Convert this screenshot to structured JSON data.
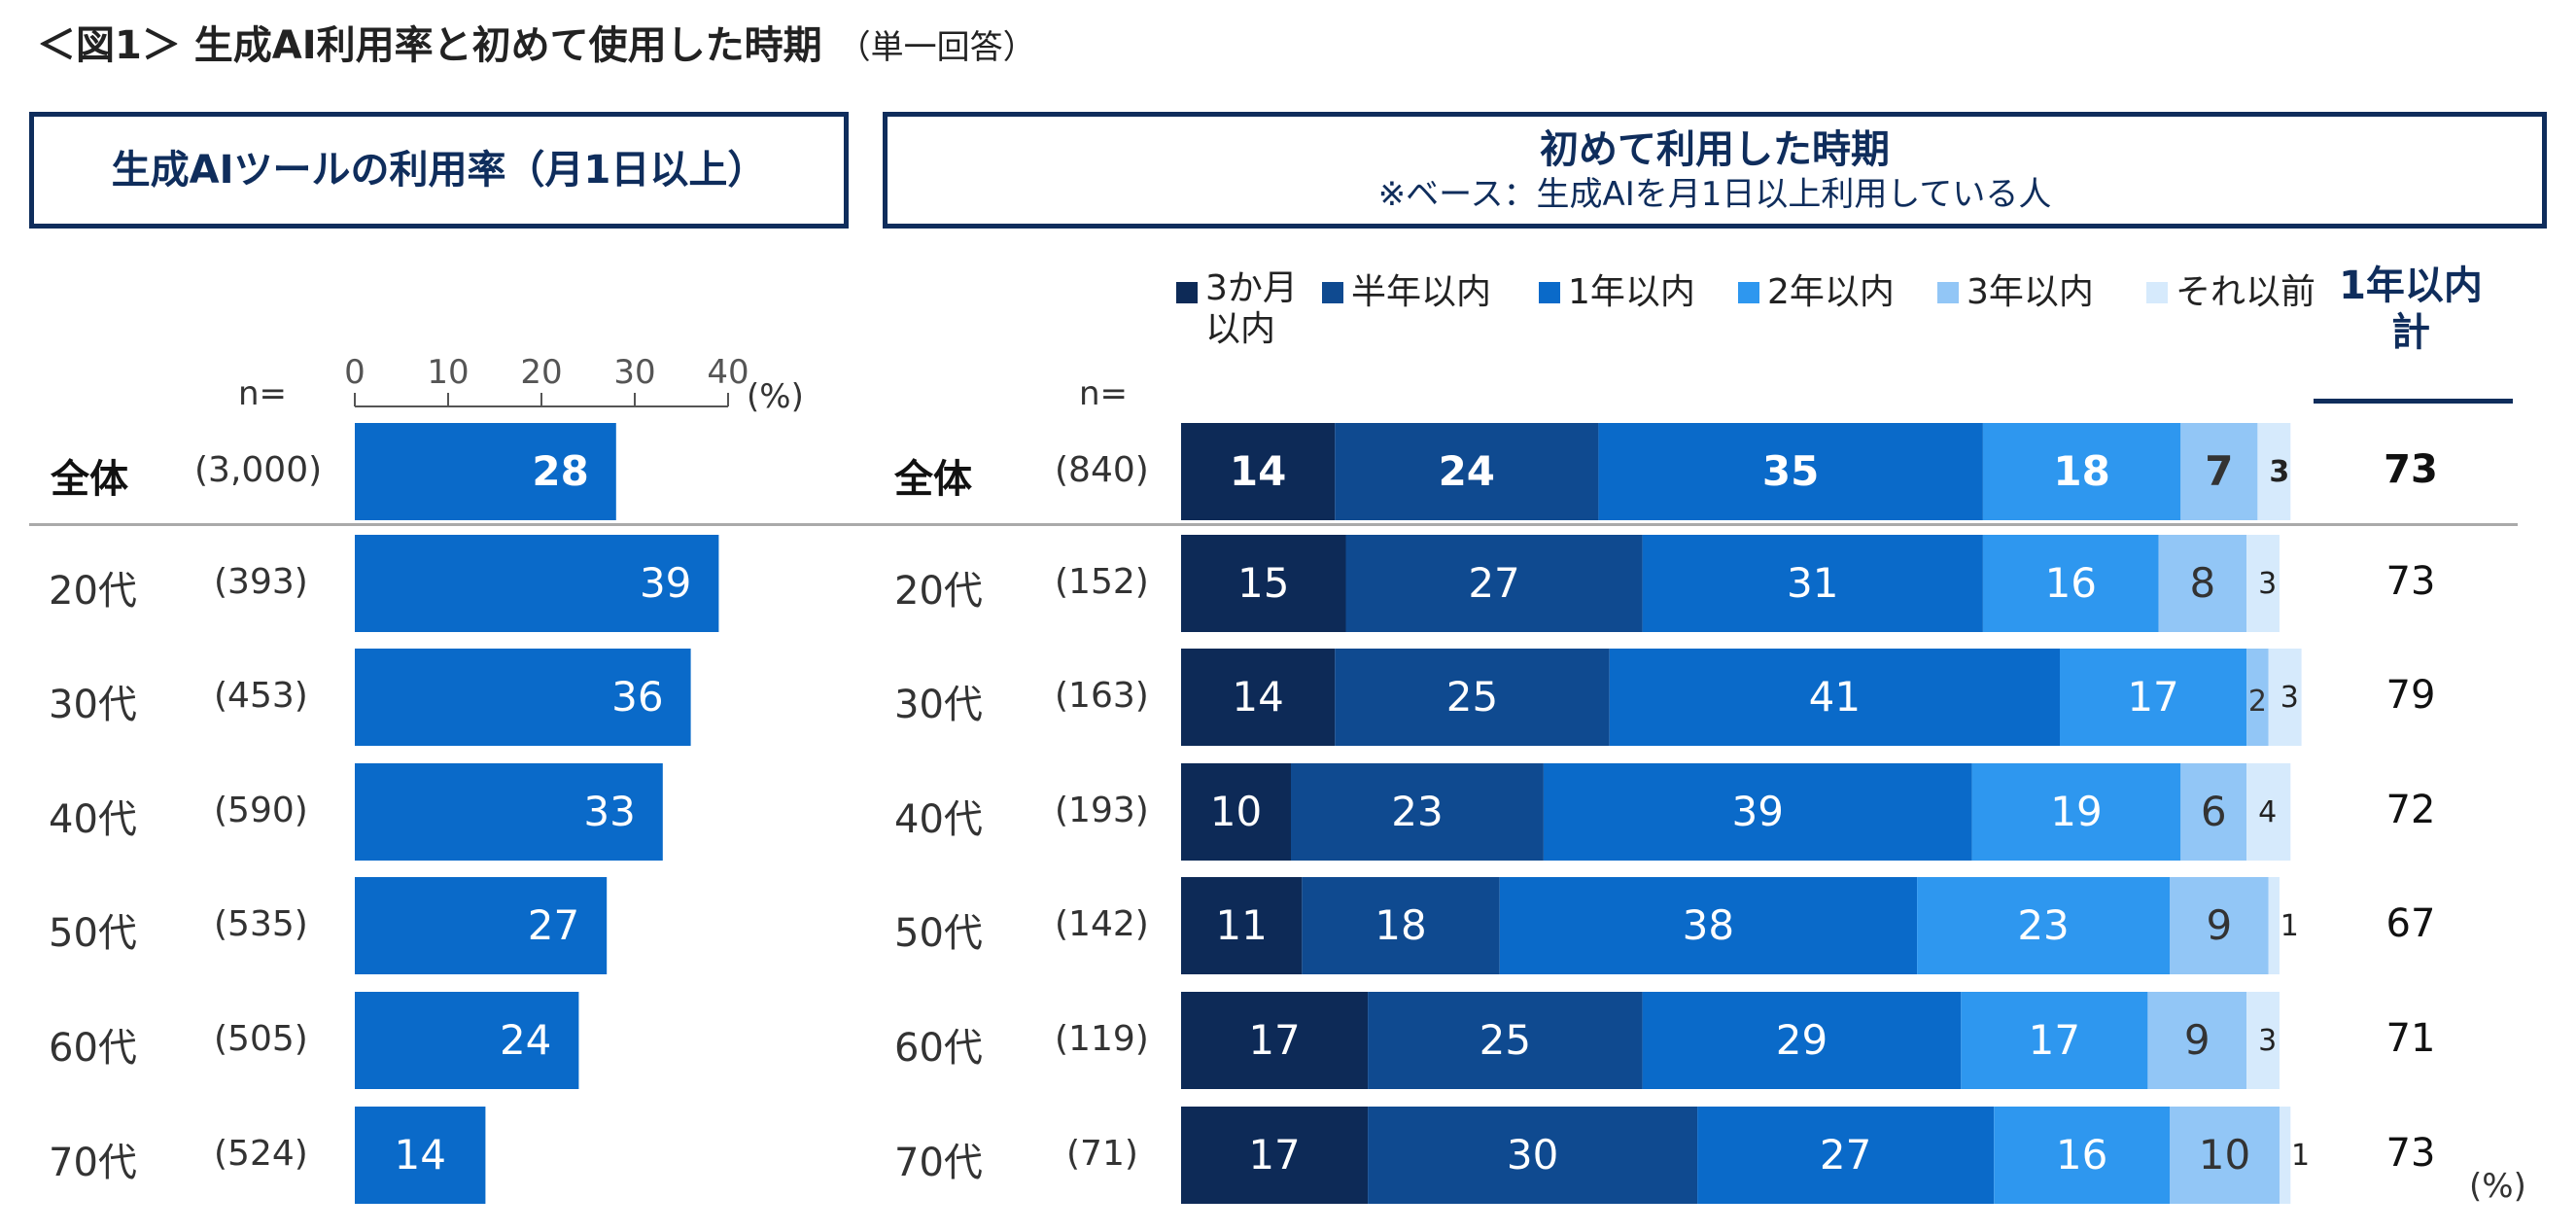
{
  "title": "＜図1＞ 生成AI利用率と初めて使用した時期",
  "title_note": "（単一回答）",
  "left_panel": {
    "heading": "生成AIツールの利用率（月1日以上）",
    "n_label": "n=",
    "unit": "(%)"
  },
  "right_panel": {
    "heading": "初めて利用した時期",
    "subheading": "※ベース：生成AIを月1日以上利用している人",
    "n_label": "n=",
    "total_heading_line1": "1年以内",
    "total_heading_line2": "計",
    "unit": "(%)"
  },
  "colors": {
    "left_bar": "#0a6ac9",
    "seg": [
      "#0d2a57",
      "#0f4a90",
      "#0a6ac9",
      "#2e97ef",
      "#92c6f6",
      "#d6eafc"
    ],
    "box_border": "#0f2d5c"
  },
  "rows": [
    {
      "label": "全体",
      "n_left": "(3,000)",
      "n_right": "(840)",
      "total": "73"
    },
    {
      "label": "20代",
      "n_left": "(393)",
      "n_right": "(152)",
      "total": "73"
    },
    {
      "label": "30代",
      "n_left": "(453)",
      "n_right": "(163)",
      "total": "79"
    },
    {
      "label": "40代",
      "n_left": "(590)",
      "n_right": "(193)",
      "total": "72"
    },
    {
      "label": "50代",
      "n_left": "(535)",
      "n_right": "(142)",
      "total": "67"
    },
    {
      "label": "60代",
      "n_left": "(505)",
      "n_right": "(119)",
      "total": "71"
    },
    {
      "label": "70代",
      "n_left": "(524)",
      "n_right": "(71)",
      "total": "73"
    }
  ],
  "chart_data": [
    {
      "type": "bar",
      "orientation": "horizontal",
      "title": "生成AIツールの利用率（月1日以上）",
      "categories": [
        "全体",
        "20代",
        "30代",
        "40代",
        "50代",
        "60代",
        "70代"
      ],
      "values": [
        28,
        39,
        36,
        33,
        27,
        24,
        14
      ],
      "xlim": [
        0,
        40
      ],
      "xticks": [
        0,
        10,
        20,
        30,
        40
      ],
      "xticklabels": [
        "0",
        "10",
        "20",
        "30",
        "40"
      ],
      "unit": "(%)"
    },
    {
      "type": "bar",
      "stacked": true,
      "orientation": "horizontal",
      "title": "初めて利用した時期",
      "categories": [
        "全体",
        "20代",
        "30代",
        "40代",
        "50代",
        "60代",
        "70代"
      ],
      "series": [
        {
          "name": "3か月以内",
          "values": [
            14,
            15,
            14,
            10,
            11,
            17,
            17
          ]
        },
        {
          "name": "半年以内",
          "values": [
            24,
            27,
            25,
            23,
            18,
            25,
            30
          ]
        },
        {
          "name": "1年以内",
          "values": [
            35,
            31,
            41,
            39,
            38,
            29,
            27
          ]
        },
        {
          "name": "2年以内",
          "values": [
            18,
            16,
            17,
            19,
            23,
            17,
            16
          ]
        },
        {
          "name": "3年以内",
          "values": [
            7,
            8,
            2,
            6,
            9,
            9,
            10
          ]
        },
        {
          "name": "それ以前",
          "values": [
            3,
            3,
            3,
            4,
            1,
            3,
            1
          ]
        }
      ],
      "legend": [
        "3か月以内",
        "半年以内",
        "1年以内",
        "2年以内",
        "3年以内",
        "それ以前"
      ],
      "unit": "(%)"
    }
  ]
}
